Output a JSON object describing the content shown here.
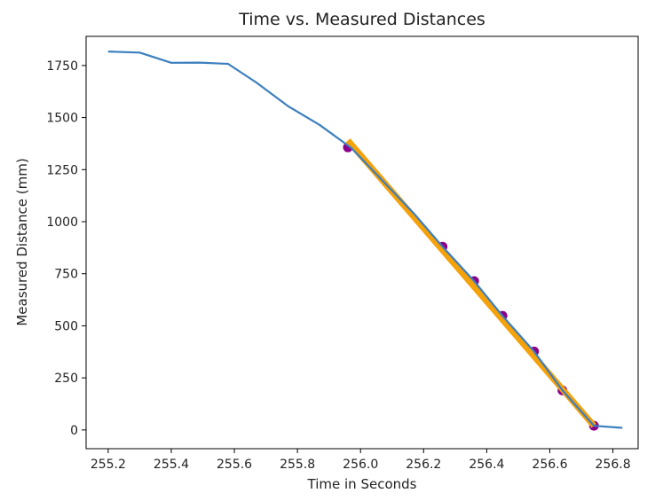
{
  "chart_data": {
    "type": "line",
    "title": "Time vs. Measured Distances",
    "xlabel": "Time in Seconds",
    "ylabel": "Measured Distance (mm)",
    "xlim": [
      255.13,
      256.88
    ],
    "ylim": [
      -90,
      1890
    ],
    "xticks": [
      "255.2",
      "255.4",
      "255.6",
      "255.8",
      "256.0",
      "256.2",
      "256.4",
      "256.6",
      "256.8"
    ],
    "yticks": [
      "0",
      "250",
      "500",
      "750",
      "1000",
      "1250",
      "1500",
      "1750"
    ],
    "grid": false,
    "colors": {
      "measured": "#3b7fbf",
      "fit": "#f5a10a",
      "points": "#8b008b"
    },
    "series": [
      {
        "kind": "line",
        "x": [
          255.2,
          255.3,
          255.4,
          255.49,
          255.58,
          255.67,
          255.77,
          255.87,
          255.97,
          256.07,
          256.17,
          256.26,
          256.36,
          256.45,
          256.55,
          256.64,
          256.74,
          256.83
        ],
        "y": [
          1817,
          1812,
          1763,
          1764,
          1758,
          1668,
          1555,
          1465,
          1355,
          1197,
          1038,
          880,
          715,
          548,
          377,
          190,
          20,
          10
        ]
      },
      {
        "kind": "fit_line",
        "x": [
          255.96,
          256.74
        ],
        "y": [
          1390,
          20
        ]
      },
      {
        "kind": "scatter",
        "x": [
          255.96,
          256.26,
          256.36,
          256.45,
          256.55,
          256.64,
          256.74
        ],
        "y": [
          1357,
          880,
          715,
          548,
          377,
          190,
          20
        ]
      }
    ]
  }
}
